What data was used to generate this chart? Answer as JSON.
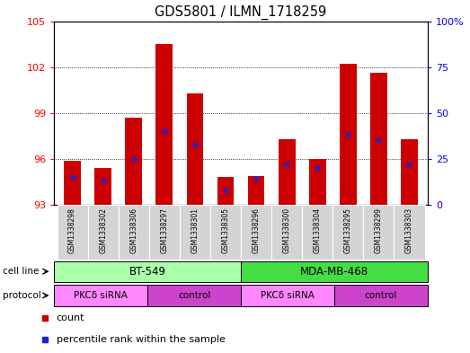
{
  "title": "GDS5801 / ILMN_1718259",
  "samples": [
    "GSM1338298",
    "GSM1338302",
    "GSM1338306",
    "GSM1338297",
    "GSM1338301",
    "GSM1338305",
    "GSM1338296",
    "GSM1338300",
    "GSM1338304",
    "GSM1338295",
    "GSM1338299",
    "GSM1338303"
  ],
  "bar_values": [
    95.9,
    95.4,
    98.7,
    103.5,
    100.3,
    94.8,
    94.9,
    97.3,
    96.0,
    102.2,
    101.6,
    97.3
  ],
  "percentile_values": [
    15,
    13,
    25,
    40,
    33,
    8,
    14,
    22,
    20,
    38,
    35,
    22
  ],
  "y_min": 93,
  "y_max": 105,
  "y_ticks_left": [
    93,
    96,
    99,
    102,
    105
  ],
  "y_ticks_right": [
    0,
    25,
    50,
    75,
    100
  ],
  "bar_color": "#cc0000",
  "dot_color": "#2222cc",
  "bar_width": 0.55,
  "cell_line_groups": [
    {
      "label": "BT-549",
      "start": 0,
      "end": 5,
      "color": "#aaffaa"
    },
    {
      "label": "MDA-MB-468",
      "start": 6,
      "end": 11,
      "color": "#44dd44"
    }
  ],
  "protocol_groups": [
    {
      "label": "PKCδ siRNA",
      "start": 0,
      "end": 2,
      "color": "#ff88ff"
    },
    {
      "label": "control",
      "start": 3,
      "end": 5,
      "color": "#cc44cc"
    },
    {
      "label": "PKCδ siRNA",
      "start": 6,
      "end": 8,
      "color": "#ff88ff"
    },
    {
      "label": "control",
      "start": 9,
      "end": 11,
      "color": "#cc44cc"
    }
  ],
  "cell_line_label": "cell line",
  "protocol_label": "protocol",
  "legend_count": "count",
  "legend_percentile": "percentile rank within the sample",
  "bg_color_plot": "#ffffff",
  "bg_color_samples": "#cccccc",
  "sample_bg_color": "#d4d4d4"
}
